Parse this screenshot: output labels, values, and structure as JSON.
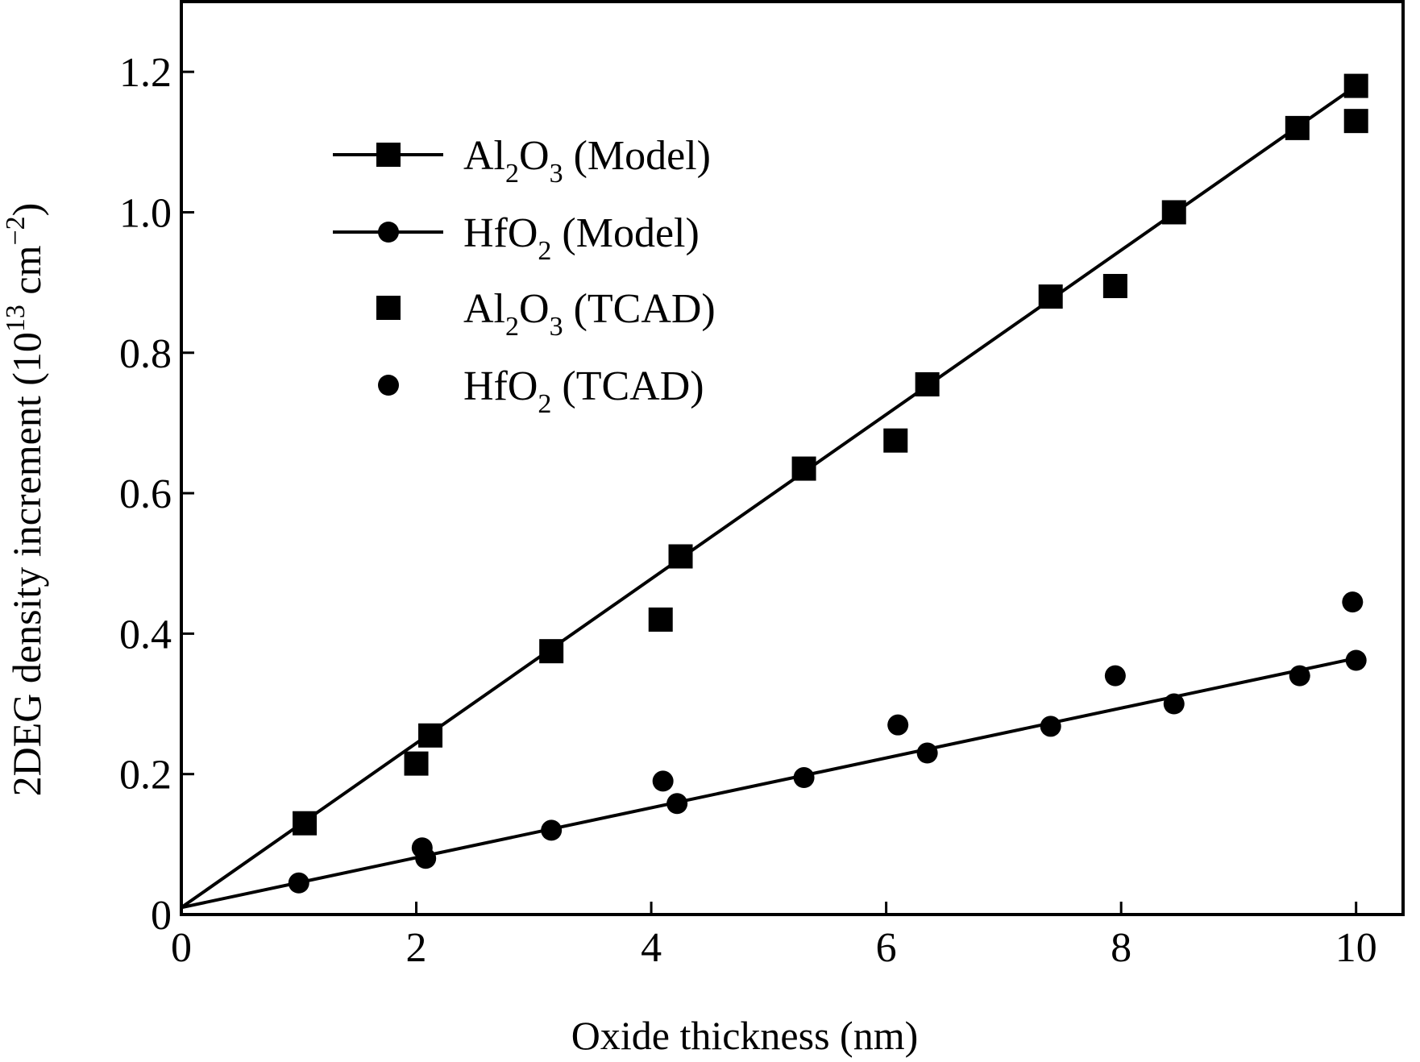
{
  "chart_data": {
    "type": "scatter",
    "xlabel": "Oxide thickness (nm)",
    "ylabel": "2DEG density increment (10",
    "ylabel_sup": "13",
    "ylabel_unit": " cm",
    "ylabel_unit_sup": "−2",
    "ylabel_close": ")",
    "xlim": [
      0,
      10.4
    ],
    "ylim": [
      0,
      1.3
    ],
    "x_ticks": [
      0,
      2,
      4,
      6,
      8,
      10
    ],
    "x_tick_labels": [
      "0",
      "2",
      "4",
      "6",
      "8",
      "10"
    ],
    "y_ticks": [
      0,
      0.2,
      0.4,
      0.6,
      0.8,
      1.0,
      1.2
    ],
    "y_tick_labels": [
      "0",
      "0.2",
      "0.4",
      "0.6",
      "0.8",
      "1.0",
      "1.2"
    ],
    "grid": false,
    "legend_position": "top-left",
    "series": [
      {
        "name": "Al2O3 (Model)",
        "legend": {
          "base": "Al",
          "sub1": "2",
          "mid": "O",
          "sub2": "3",
          "rest": " (Model)"
        },
        "marker": "square",
        "line": true,
        "line_points": [
          [
            0,
            0.01
          ],
          [
            10,
            1.18
          ]
        ],
        "x": [
          1.05,
          2.12,
          3.15,
          4.25,
          5.3,
          6.35,
          7.4,
          8.45,
          9.5,
          10.0
        ],
        "y": [
          0.13,
          0.255,
          0.375,
          0.51,
          0.635,
          0.755,
          0.88,
          1.0,
          1.12,
          1.18
        ]
      },
      {
        "name": "HfO2 (Model)",
        "legend": {
          "base": "HfO",
          "sub1": "2",
          "mid": "",
          "sub2": "",
          "rest": " (Model)"
        },
        "marker": "circle",
        "line": true,
        "line_points": [
          [
            0,
            0.01
          ],
          [
            10,
            0.365
          ]
        ],
        "x": [
          1.0,
          2.08,
          3.15,
          4.22,
          5.3,
          6.35,
          7.4,
          8.45,
          9.52,
          10.0
        ],
        "y": [
          0.045,
          0.08,
          0.12,
          0.158,
          0.195,
          0.23,
          0.268,
          0.3,
          0.34,
          0.362
        ]
      },
      {
        "name": "Al2O3 (TCAD)",
        "legend": {
          "base": "Al",
          "sub1": "2",
          "mid": "O",
          "sub2": "3",
          "rest": " (TCAD)"
        },
        "marker": "square",
        "line": false,
        "x": [
          2.0,
          4.08,
          6.08,
          7.95,
          10.0
        ],
        "y": [
          0.215,
          0.42,
          0.675,
          0.895,
          1.13
        ]
      },
      {
        "name": "HfO2 (TCAD)",
        "legend": {
          "base": "HfO",
          "sub1": "2",
          "mid": "",
          "sub2": "",
          "rest": " (TCAD)"
        },
        "marker": "circle",
        "line": false,
        "x": [
          2.05,
          4.1,
          6.1,
          7.95,
          9.97
        ],
        "y": [
          0.095,
          0.19,
          0.27,
          0.34,
          0.445
        ]
      }
    ]
  }
}
